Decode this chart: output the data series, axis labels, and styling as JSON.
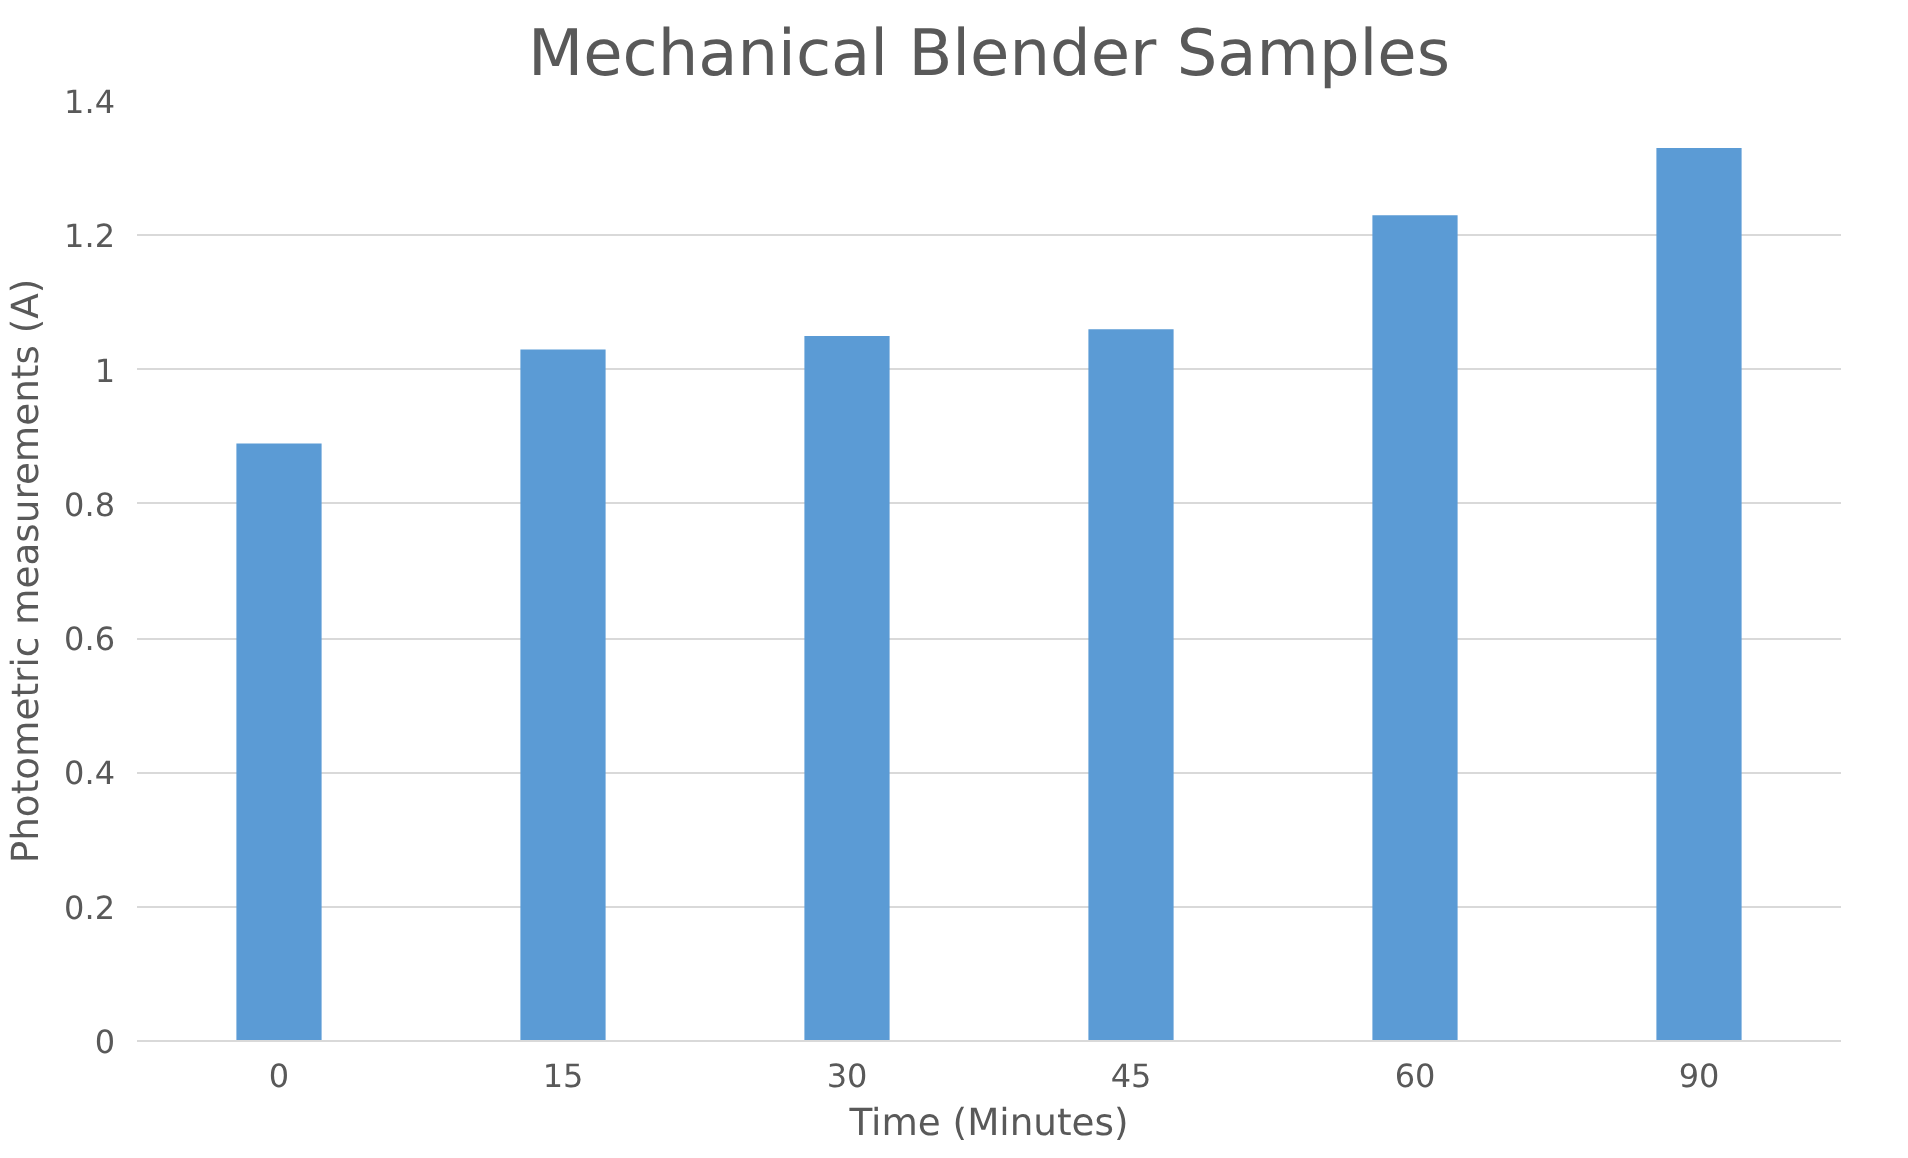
{
  "chart_data": {
    "type": "bar",
    "title": "Mechanical Blender Samples",
    "xlabel": "Time (Minutes)",
    "ylabel": "Photometric measurements (A)",
    "categories": [
      "0",
      "15",
      "30",
      "45",
      "60",
      "90"
    ],
    "values": [
      0.89,
      1.03,
      1.05,
      1.06,
      1.23,
      1.33
    ],
    "color": "#5b9bd5",
    "ylim": [
      0,
      1.4
    ],
    "yticks": [
      0,
      0.2,
      0.4,
      0.6,
      0.8,
      1,
      1.2,
      1.4
    ],
    "grid": "y"
  }
}
